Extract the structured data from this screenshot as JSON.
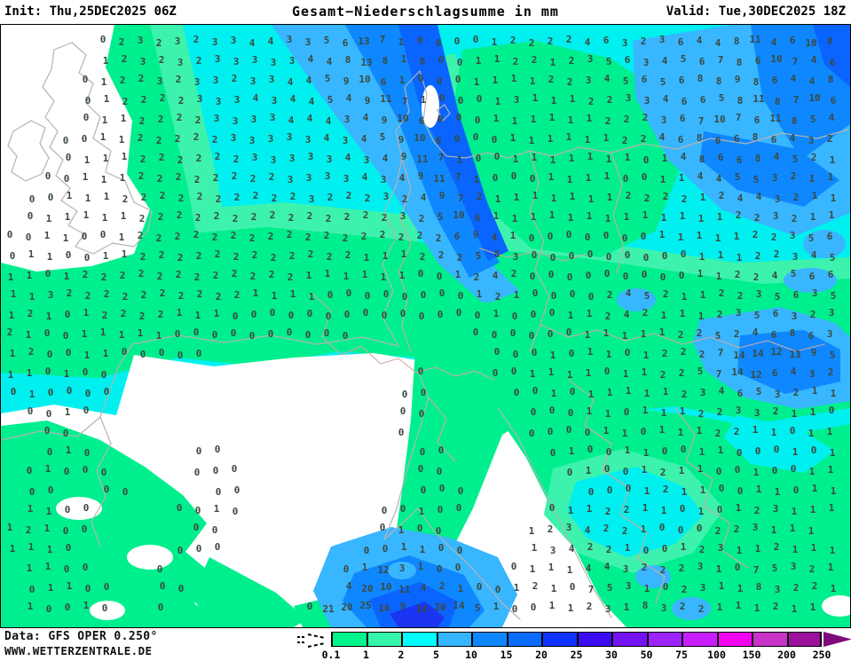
{
  "header": {
    "init_label": "Init: Thu,25DEC2025 06Z",
    "title": "Gesamt−Niederschlagsumme in mm",
    "valid_label": "Valid: Tue,30DEC2025 18Z"
  },
  "footer": {
    "data_source": "Data: GFS OPER 0.250°",
    "website": "WWW.WETTERZENTRALE.DE"
  },
  "legend": {
    "labels": [
      "0.1",
      "1",
      "2",
      "5",
      "10",
      "15",
      "20",
      "25",
      "30",
      "50",
      "75",
      "100",
      "150",
      "200",
      "250"
    ],
    "colors": [
      "#00f58b",
      "#35f7a9",
      "#00ffff",
      "#35b5ff",
      "#0f87ff",
      "#0a6bff",
      "#1133ff",
      "#3c0cf0",
      "#7613f5",
      "#9e24ff",
      "#c81eff",
      "#f205f2",
      "#c732c7",
      "#9c119c"
    ],
    "arrow_color": "#7e0b7e",
    "trace_symbol": "dashed-trace-marker"
  },
  "map": {
    "palette": {
      "none": "#ffffff",
      "p01_1": "#00ef8e",
      "p1_2": "#3df2ac",
      "p2_5": "#00efef",
      "p5_10": "#38b6ff",
      "p10_15": "#0f87ff",
      "p15_20": "#0a64ff",
      "p20_25": "#1b35f2",
      "coastline": "#b4b4b4",
      "country_border": "#ccaaa2",
      "number_color": "#3b4a40"
    },
    "grid_rows": [
      ". . . . . 0 2 3 2 3 2 3 3 4 4 3 3 5 6 13 7 1 0 0 0 0 1 2 2 2 2 4 6 3 2 3 6 4 4 8 11 4 6 10 8",
      ". . . . . 1 2 3 2 3 2 3 3 3 3 3 4 4 8 13 8 1 0 0 0 1 1 2 2 1 2 3 5 6 3 4 5 6 7 8 6 10 7 4 6",
      ". . . . 0 1 2 2 3 2 3 3 2 3 3 4 4 5 9 10 6 1 0 0 0 1 1 1 1 2 2 3 4 5 6 5 6 8 8 9 8 6 4 4 8",
      ". . . . 0 1 2 2 2 2 3 3 3 4 3 4 4 5 4 9 11 7 1 0 0 0 1 3 1 1 1 2 2 3 3 4 6 6 5 8 11 8 7 10 6",
      ". . . . 0 1 1 2 2 2 2 3 3 3 3 4 4 4 3 4 9 10 6 0 0 0 1 1 1 1 1 1 2 2 2 3 6 7 10 7 6 11 8 5 4",
      ". . . 0 0 1 1 2 2 2 2 2 3 3 3 3 3 4 3 4 5 9 10 6 0 0 0 1 1 1 1 1 1 2 2 4 6 8 6 6 8 6 4 3 2",
      ". . . 0 1 1 1 2 2 2 2 2 2 3 3 3 3 3 4 3 4 9 11 7 1 0 0 1 1 1 1 1 1 1 0 1 4 8 6 6 8 4 5 2 1",
      ". . 0 0 1 1 1 2 2 2 2 2 2 2 2 3 3 3 3 4 3 4 9 11 7 1 0 0 0 1 1 1 1 0 0 1 1 4 4 5 5 3 2 1 1",
      ". 0 0 1 1 1 2 2 2 2 2 2 2 2 2 2 3 2 2 2 3 2 4 9 7 2 1 1 1 1 1 1 1 2 2 2 2 1 2 4 4 3 2 1 1",
      ". 0 1 1 1 1 1 2 2 2 2 2 2 2 2 2 2 2 2 2 2 3 2 5 10 6 1 1 1 1 1 1 1 1 1 1 1 1 1 2 2 3 2 1 1",
      "0 0 1 1 0 0 1 2 2 2 2 2 2 2 2 2 2 2 2 2 2 2 2 2 6 9 4 1 0 0 0 0 0 0 0 1 1 1 1 1 2 2 3 5 6",
      "0 1 1 0 0 1 1 2 2 2 2 2 2 2 2 2 2 2 2 1 1 1 2 2 2 5 8 3 0 0 0 0 0 0 0 0 0 1 1 1 2 2 3 4 5",
      "1 1 0 1 2 2 2 2 2 2 2 2 2 2 2 2 1 1 1 1 1 1 0 0 1 2 4 2 0 0 0 0 0 0 0 0 0 1 1 2 2 4 5 6 6",
      "1 1 3 2 2 2 2 2 2 2 2 2 2 1 1 1 1 0 0 0 0 0 0 0 0 1 2 1 0 0 0 0 2 4 5 2 1 1 2 2 3 5 6 3 5",
      "1 2 1 0 1 2 2 2 2 1 1 1 0 0 0 0 0 0 0 0 0 0 0 0 0 0 1 0 0 0 1 1 2 4 2 1 1 1 2 3 5 6 3 2 3",
      "2 1 0 0 1 1 1 1 1 0 0 0 0 0 0 0 0 0 0 . . . . . . 0 0 0 0 0 0 1 1 1 1 1 2 2 5 2 4 6 8 6 3",
      "1 2 0 0 1 1 0 0 0 0 0 . . . . . . . . . . . . . . . 0 0 0 1 0 1 1 0 1 2 2 2 7 14 14 12 13 9 5",
      "1 1 0 1 0 0 . . . . . . . . . . . . . . . . 0 . . . 0 0 1 1 1 1 0 1 1 2 2 5 7 14 12 6 4 3 2",
      "0 1 0 0 0 0 . . . . . . . . . . . . . . . 0 0 . . . . 0 0 1 0 1 1 1 1 1 2 3 4 6 5 3 2 1 1",
      ". 0 0 1 0 . . . . . . . . . . . . . . . . 0 0 . . . . . 0 0 0 1 1 0 1 1 1 2 2 3 3 2 1 1 0",
      ". . 0 0 . . . . . . . . . . . . . . . . . 0 . . . . . . 0 0 0 0 1 1 0 1 1 1 2 2 1 1 0 1 1",
      ". . 0 1 0 . . . . . 0 0 . . . . . . . . . . 0 0 . . . . . 0 1 0 0 1 1 0 0 1 1 0 0 0 1 0 1",
      ". 0 1 0 0 0 . . . . 0 0 0 . . . . . . . . . 0 0 . . . . . . 0 1 0 0 1 2 1 1 0 0 1 0 0 1 1",
      ". 0 0 . . 0 0 . . . . 0 0 . . . . . . . . . 0 0 0 . . . . . . 0 0 0 1 2 1 1 0 0 1 1 0 1 1",
      ". 1 1 0 0 . . . . 0 0 1 0 . . . . . . . 0 0 1 0 0 . . . . 0 1 1 2 2 1 1 0 1 0 1 2 3 1 1 1",
      "1 2 1 0 0 . . . . . 0 0 . . . . . . . . 0 1 0 0 . . . . 1 2 3 4 2 2 1 0 0 0 2 2 3 1 1 1 .",
      "1 1 1 0 . . . . . 0 0 0 . . . . . . . 0 0 1 1 0 0 . . . 1 3 4 2 2 1 0 0 1 2 3 1 1 2 1 1 1",
      ". 1 1 0 0 . . . 0 . . . . . . . . . 0 1 12 3 1 0 0 . . 0 1 1 1 4 4 3 2 2 2 3 1 0 7 5 3 2 1",
      ". 0 1 1 0 0 . . 0 0 . . . . . . . . 4 20 10 11 4 2 1 0 0 1 2 1 0 7 5 3 1 0 2 3 1 1 8 3 2 2 1",
      ". 1 0 0 1 0 . . 0 . . . . . . . 0 21 20 25 16 9 14 20 14 5 1 0 0 1 1 2 3 1 8 3 2 2 1 1 1 2 1 1 ."
    ]
  }
}
